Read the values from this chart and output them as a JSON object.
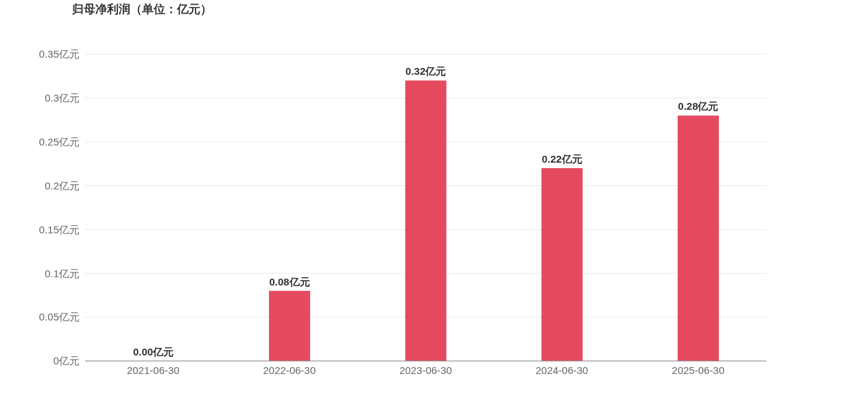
{
  "chart_data": {
    "type": "bar",
    "title": "归母净利润（单位：亿元）",
    "categories": [
      "2021-06-30",
      "2022-06-30",
      "2023-06-30",
      "2024-06-30",
      "2025-06-30"
    ],
    "values": [
      0.0,
      0.08,
      0.32,
      0.22,
      0.28
    ],
    "value_labels": [
      "0.00亿元",
      "0.08亿元",
      "0.32亿元",
      "0.22亿元",
      "0.28亿元"
    ],
    "color": "#e54a5e",
    "ylim": [
      0,
      0.35
    ],
    "yticks": [
      {
        "value": 0,
        "label": "0亿元"
      },
      {
        "value": 0.05,
        "label": "0.05亿元"
      },
      {
        "value": 0.1,
        "label": "0.1亿元"
      },
      {
        "value": 0.15,
        "label": "0.15亿元"
      },
      {
        "value": 0.2,
        "label": "0.2亿元"
      },
      {
        "value": 0.25,
        "label": "0.25亿元"
      },
      {
        "value": 0.3,
        "label": "0.3亿元"
      },
      {
        "value": 0.35,
        "label": "0.35亿元"
      }
    ],
    "grid": "y",
    "legend": false
  }
}
